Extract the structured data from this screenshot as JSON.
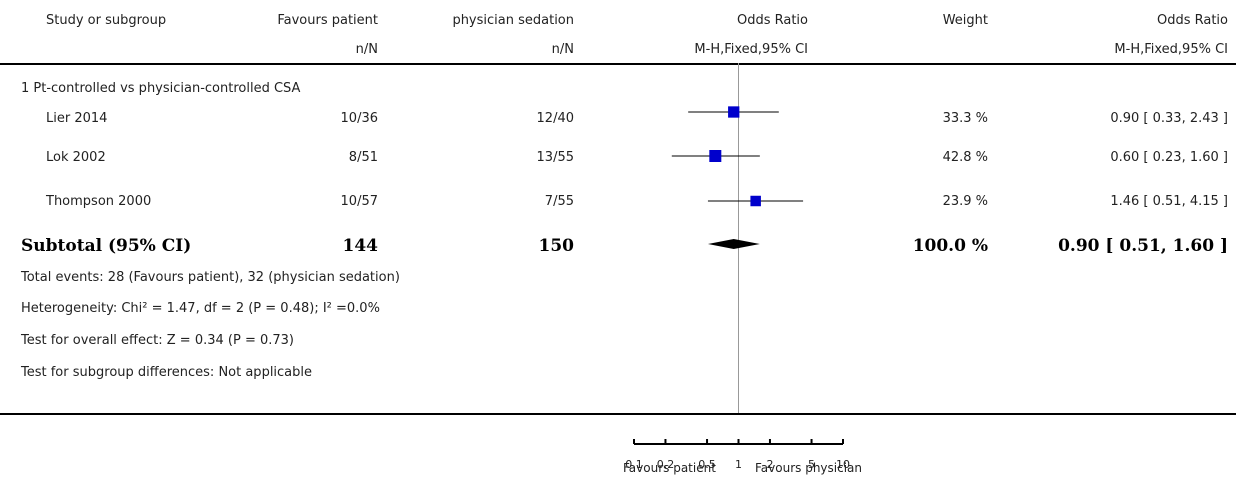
{
  "header": {
    "col_study": "Study or subgroup",
    "col_exp": "Favours patient",
    "col_ctrl": "physician sedation",
    "col_or_plot": "Odds Ratio",
    "col_weight": "Weight",
    "col_or_text": "Odds Ratio",
    "sub_exp": "n/N",
    "sub_ctrl": "n/N",
    "sub_or_plot": "M-H,Fixed,95% CI",
    "sub_or_text": "M-H,Fixed,95% CI"
  },
  "subgroup_title": "1 Pt-controlled vs physician-controlled CSA",
  "subtotal": {
    "label": "Subtotal (95% CI)",
    "exp_total": "144",
    "ctrl_total": "150",
    "weight": "100.0 %",
    "ci_text": "0.90 [ 0.51, 1.60 ]"
  },
  "footnotes": {
    "events": "Total events: 28 (Favours patient), 32 (physician sedation)",
    "heterogeneity": "Heterogeneity: Chi² = 1.47, df = 2 (P = 0.48); I² =0.0%",
    "overall": "Test for overall effect: Z = 0.34 (P = 0.73)",
    "subgroup_diff": "Test for subgroup differences: Not applicable"
  },
  "axis_labels": {
    "favours_left": "Favours patient",
    "favours_right": "Favours physician"
  },
  "chart_data": {
    "type": "forest",
    "scale": "log",
    "xlim": [
      0.1,
      10
    ],
    "x_ticks": [
      0.1,
      0.2,
      0.5,
      1,
      2,
      5,
      10
    ],
    "x_tick_labels": [
      "0.1",
      "0.2",
      "0.5",
      "1",
      "2",
      "5",
      "10"
    ],
    "reference_line": 1,
    "studies": [
      {
        "name": "Lier 2014",
        "exp": "10/36",
        "ctrl": "12/40",
        "or": 0.9,
        "lo": 0.33,
        "hi": 2.43,
        "weight": 33.3,
        "weight_text": "33.3 %",
        "ci_text": "0.90 [ 0.33, 2.43 ]"
      },
      {
        "name": "Lok 2002",
        "exp": "8/51",
        "ctrl": "13/55",
        "or": 0.6,
        "lo": 0.23,
        "hi": 1.6,
        "weight": 42.8,
        "weight_text": "42.8 %",
        "ci_text": "0.60 [ 0.23, 1.60 ]"
      },
      {
        "name": "Thompson 2000",
        "exp": "10/57",
        "ctrl": "7/55",
        "or": 1.46,
        "lo": 0.51,
        "hi": 4.15,
        "weight": 23.9,
        "weight_text": "23.9 %",
        "ci_text": "1.46 [ 0.51, 4.15 ]"
      }
    ],
    "pooled": {
      "or": 0.9,
      "lo": 0.51,
      "hi": 1.6
    },
    "marker_color": "#0000cc"
  }
}
